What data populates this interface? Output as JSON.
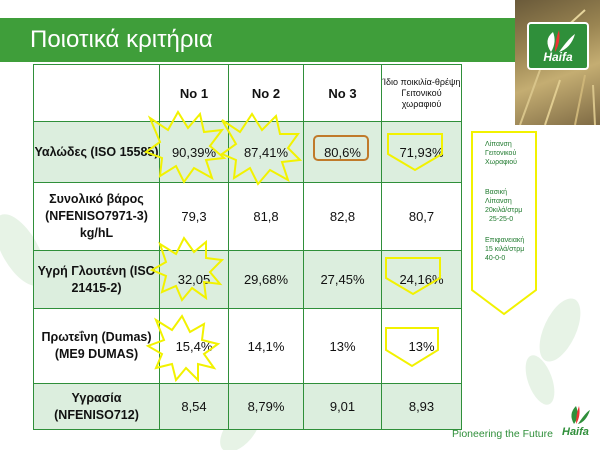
{
  "title": "Ποιοτικά κριτήρια",
  "photo": {
    "brand": "Haifa"
  },
  "table": {
    "headers": [
      "",
      "No 1",
      "No 2",
      "No 3",
      "Ίδιο ποικιλία-θρέψη Γειτονικού χωραφιού"
    ],
    "rows": [
      {
        "label": "Υαλώδες (ISO 15585)",
        "values": [
          "90,39%",
          "87,41%",
          "80,6%",
          "71,93%"
        ]
      },
      {
        "label": "Συνολικό βάρος (NFENISO7971-3) kg/hL",
        "values": [
          "79,3",
          "81,8",
          "82,8",
          "80,7"
        ]
      },
      {
        "label": "Υγρή Γλουτένη (ISO 21415-2)",
        "values": [
          "32,05",
          "29,68%",
          "27,45%",
          "24,16%"
        ]
      },
      {
        "label": "Πρωτεΐνη (Dumas) (ME9 DUMAS)",
        "values": [
          "15,4%",
          "14,1%",
          "13%",
          "13%"
        ]
      },
      {
        "label": "Υγρασία (NFENISO712)",
        "values": [
          "8,54",
          "8,79%",
          "9,01",
          "8,93"
        ]
      }
    ]
  },
  "sidebar": {
    "line1": "Λίπανση",
    "line2": "Γειτονικού",
    "line3": "Χωραφιού",
    "line4": "Βασική",
    "line5": "Λίπανση",
    "line6": "20κιλά/στρμ",
    "line7": "25-25-0",
    "line8": "Επιφανειακή",
    "line9": "15 κιλά/στρμ",
    "line10": "40-0-0"
  },
  "footer": {
    "tagline": "Pioneering the Future",
    "brand": "Haifa"
  },
  "colors": {
    "green": "#3f9e3a",
    "highlight": "#f2f200",
    "circle": "#c07a2a",
    "shade": "#dceede"
  }
}
